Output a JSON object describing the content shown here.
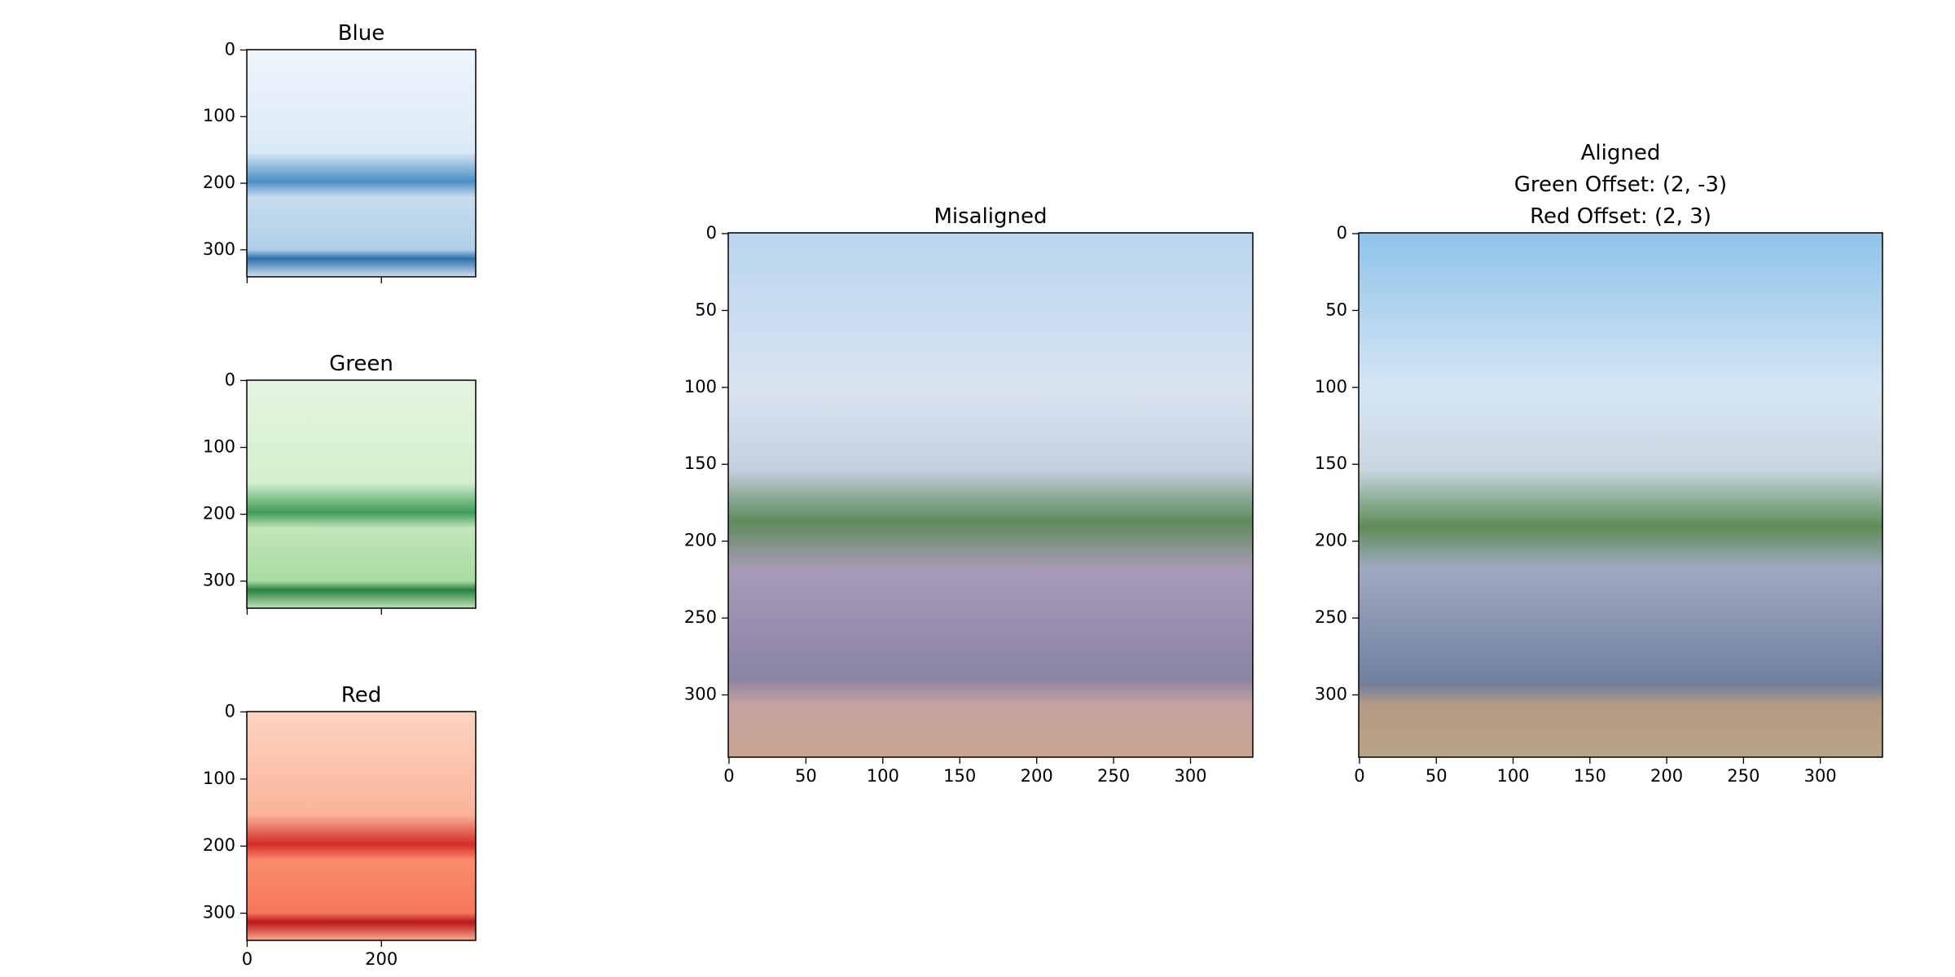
{
  "chart_data": [
    {
      "type": "image",
      "title": "Blue",
      "cmap": "Blues",
      "xlim": [
        -0.5,
        340.5
      ],
      "ylim": [
        340.5,
        -0.5
      ],
      "xticks": [
        0,
        200
      ],
      "xticklabels": false,
      "yticks": [
        0,
        100,
        200,
        300
      ]
    },
    {
      "type": "image",
      "title": "Green",
      "cmap": "Greens",
      "xlim": [
        -0.5,
        340.5
      ],
      "ylim": [
        340.5,
        -0.5
      ],
      "xticks": [
        0,
        200
      ],
      "xticklabels": false,
      "yticks": [
        0,
        100,
        200,
        300
      ]
    },
    {
      "type": "image",
      "title": "Red",
      "cmap": "Reds",
      "xlim": [
        -0.5,
        340.5
      ],
      "ylim": [
        340.5,
        -0.5
      ],
      "xticks": [
        0,
        200
      ],
      "xticklabels": true,
      "yticks": [
        0,
        100,
        200,
        300
      ]
    },
    {
      "type": "image",
      "title": "Misaligned",
      "cmap": "rgb-misaligned",
      "xlim": [
        -0.5,
        340.5
      ],
      "ylim": [
        340.5,
        -0.5
      ],
      "xticks": [
        0,
        50,
        100,
        150,
        200,
        250,
        300
      ],
      "xticklabels": true,
      "yticks": [
        0,
        50,
        100,
        150,
        200,
        250,
        300
      ]
    },
    {
      "type": "image",
      "title": [
        "Aligned",
        "Green Offset: (2, -3)",
        "Red Offset: (2, 3)"
      ],
      "cmap": "rgb-aligned",
      "xlim": [
        -0.5,
        340.5
      ],
      "ylim": [
        340.5,
        -0.5
      ],
      "xticks": [
        0,
        50,
        100,
        150,
        200,
        250,
        300
      ],
      "xticklabels": true,
      "yticks": [
        0,
        50,
        100,
        150,
        200,
        250,
        300
      ]
    }
  ]
}
